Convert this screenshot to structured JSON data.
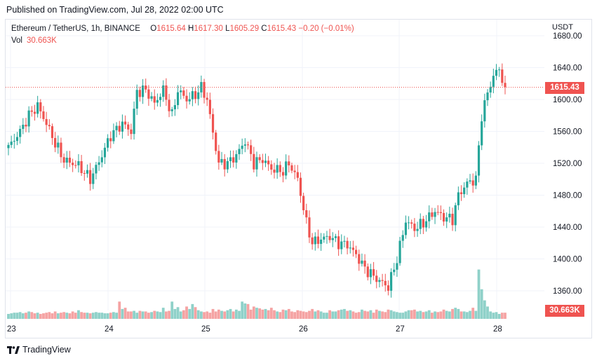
{
  "header": {
    "published": "Published on TradingView.com, Jul 28, 2022 02:00 UTC"
  },
  "legend": {
    "symbol": "Ethereum / TetherUS, 1h, BINANCE",
    "o_label": "O",
    "o_value": "1615.64",
    "h_label": "H",
    "h_value": "1617.30",
    "l_label": "L",
    "l_value": "1605.29",
    "c_label": "C",
    "c_value": "1615.43",
    "change": "−0.20 (−0.01%)",
    "vol_label": "Vol",
    "vol_value": "30.663K"
  },
  "axis": {
    "currency": "USDT",
    "price_tag": "1615.43",
    "vol_tag": "30.663K"
  },
  "footer": {
    "brand": "TradingView"
  },
  "colors": {
    "up": "#26a69a",
    "down": "#ef5350",
    "up_vol": "#8fd1c9",
    "down_vol": "#f5a3a3",
    "grid": "#f0f3fa"
  },
  "chart_data": {
    "type": "candlestick",
    "title": "Ethereum / TetherUS, 1h, BINANCE",
    "ylabel": "USDT",
    "y_ticks": [
      "1360.00",
      "1400.00",
      "1440.00",
      "1480.00",
      "1520.00",
      "1560.00",
      "1600.00",
      "1640.00",
      "1680.00"
    ],
    "x_ticks": [
      "23",
      "24",
      "25",
      "26",
      "27",
      "28"
    ],
    "ylim": [
      1340,
      1685
    ],
    "last_price": 1615.43,
    "anchors": [
      {
        "x": 0,
        "p": 1540
      },
      {
        "x": 4,
        "p": 1560
      },
      {
        "x": 7,
        "p": 1580
      },
      {
        "x": 10,
        "p": 1592
      },
      {
        "x": 13,
        "p": 1570
      },
      {
        "x": 16,
        "p": 1545
      },
      {
        "x": 19,
        "p": 1524
      },
      {
        "x": 24,
        "p": 1517
      },
      {
        "x": 28,
        "p": 1500
      },
      {
        "x": 31,
        "p": 1522
      },
      {
        "x": 35,
        "p": 1555
      },
      {
        "x": 39,
        "p": 1570
      },
      {
        "x": 42,
        "p": 1560
      },
      {
        "x": 44,
        "p": 1610
      },
      {
        "x": 47,
        "p": 1612
      },
      {
        "x": 50,
        "p": 1595
      },
      {
        "x": 53,
        "p": 1612
      },
      {
        "x": 56,
        "p": 1580
      },
      {
        "x": 58,
        "p": 1612
      },
      {
        "x": 61,
        "p": 1600
      },
      {
        "x": 64,
        "p": 1606
      },
      {
        "x": 66,
        "p": 1615
      },
      {
        "x": 68,
        "p": 1600
      },
      {
        "x": 70,
        "p": 1558
      },
      {
        "x": 72,
        "p": 1520
      },
      {
        "x": 75,
        "p": 1520
      },
      {
        "x": 78,
        "p": 1530
      },
      {
        "x": 81,
        "p": 1548
      },
      {
        "x": 84,
        "p": 1520
      },
      {
        "x": 87,
        "p": 1525
      },
      {
        "x": 90,
        "p": 1513
      },
      {
        "x": 94,
        "p": 1510
      },
      {
        "x": 96,
        "p": 1520
      },
      {
        "x": 99,
        "p": 1500
      },
      {
        "x": 102,
        "p": 1445
      },
      {
        "x": 104,
        "p": 1420
      },
      {
        "x": 107,
        "p": 1425
      },
      {
        "x": 110,
        "p": 1428
      },
      {
        "x": 113,
        "p": 1420
      },
      {
        "x": 116,
        "p": 1418
      },
      {
        "x": 119,
        "p": 1405
      },
      {
        "x": 122,
        "p": 1388
      },
      {
        "x": 126,
        "p": 1375
      },
      {
        "x": 130,
        "p": 1365
      },
      {
        "x": 133,
        "p": 1400
      },
      {
        "x": 136,
        "p": 1448
      },
      {
        "x": 139,
        "p": 1438
      },
      {
        "x": 142,
        "p": 1445
      },
      {
        "x": 146,
        "p": 1460
      },
      {
        "x": 149,
        "p": 1452
      },
      {
        "x": 152,
        "p": 1450
      },
      {
        "x": 154,
        "p": 1480
      },
      {
        "x": 157,
        "p": 1495
      },
      {
        "x": 160,
        "p": 1500
      },
      {
        "x": 162,
        "p": 1580
      },
      {
        "x": 164,
        "p": 1608
      },
      {
        "x": 166,
        "p": 1630
      },
      {
        "x": 168,
        "p": 1638
      },
      {
        "x": 170,
        "p": 1615
      }
    ],
    "volumes": [
      8,
      9,
      10,
      10,
      11,
      9,
      10,
      12,
      11,
      9,
      10,
      8,
      9,
      10,
      11,
      9,
      12,
      9,
      10,
      11,
      10,
      9,
      12,
      10,
      14,
      11,
      10,
      10,
      9,
      10,
      11,
      10,
      10,
      9,
      9,
      10,
      11,
      10,
      28,
      16,
      18,
      12,
      12,
      13,
      10,
      13,
      12,
      12,
      10,
      11,
      13,
      12,
      11,
      18,
      12,
      13,
      28,
      16,
      19,
      12,
      14,
      20,
      16,
      24,
      19,
      14,
      12,
      11,
      12,
      10,
      16,
      12,
      15,
      13,
      12,
      14,
      16,
      12,
      15,
      13,
      28,
      25,
      24,
      15,
      20,
      18,
      17,
      15,
      16,
      14,
      18,
      14,
      12,
      11,
      15,
      14,
      16,
      12,
      11,
      14,
      13,
      12,
      11,
      13,
      16,
      12,
      14,
      12,
      10,
      10,
      14,
      12,
      12,
      14,
      15,
      16,
      13,
      14,
      12,
      10,
      11,
      15,
      13,
      12,
      14,
      10,
      15,
      13,
      12,
      11,
      15,
      14,
      12,
      11,
      10,
      10,
      12,
      14,
      14,
      15,
      12,
      13,
      11,
      12,
      14,
      10,
      12,
      11,
      12,
      15,
      13,
      12,
      16,
      18,
      16,
      12,
      12,
      11,
      13,
      18,
      13,
      80,
      48,
      30,
      20,
      12,
      10,
      11,
      8
    ]
  }
}
